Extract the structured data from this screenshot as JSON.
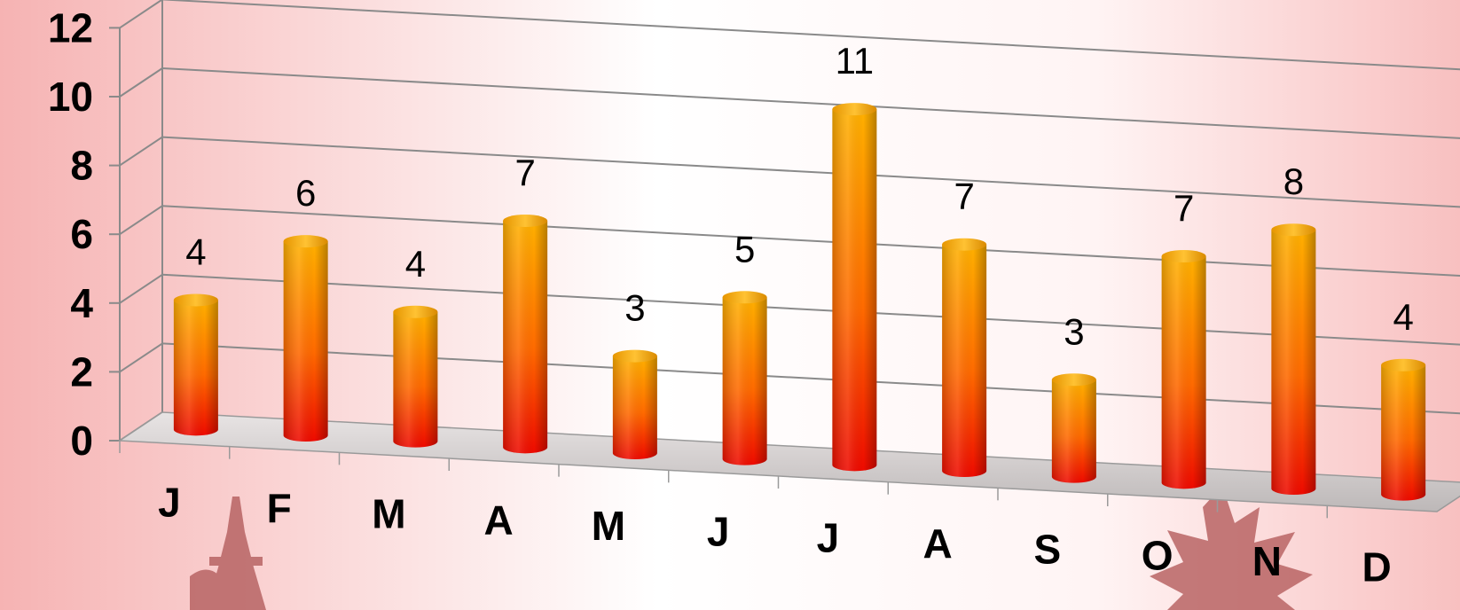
{
  "chart_data": {
    "type": "bar",
    "categories": [
      "J",
      "F",
      "M",
      "A",
      "M",
      "J",
      "J",
      "A",
      "S",
      "O",
      "N",
      "D"
    ],
    "values": [
      4,
      6,
      4,
      7,
      3,
      5,
      11,
      7,
      3,
      7,
      8,
      4
    ],
    "data_labels": [
      "4",
      "6",
      "4",
      "7",
      "3",
      "5",
      "11",
      "7",
      "3",
      "7",
      "8",
      "4"
    ],
    "ylim": [
      0,
      12
    ],
    "yticks": [
      "0",
      "2",
      "4",
      "6",
      "8",
      "10",
      "12"
    ],
    "grid": true,
    "legend": "none",
    "style": "3d-cylinder"
  },
  "colors": {
    "background_edge": "#f6b3b3",
    "background_center": "#ffffff",
    "bar_top": "#ffb000",
    "bar_bottom": "#ee0a00",
    "floor": "#cfcfcf",
    "gridline": "#888888",
    "watermark": "#b86464"
  },
  "icons": [
    "eiffel-tower-watermark-icon",
    "maple-leaf-watermark-icon"
  ]
}
